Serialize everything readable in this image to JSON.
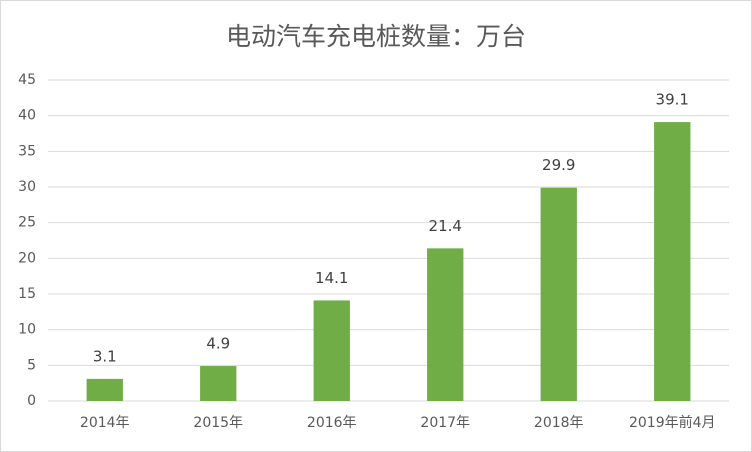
{
  "chart_data": {
    "type": "bar",
    "title": "电动汽车充电桩数量：万台",
    "categories": [
      "2014年",
      "2015年",
      "2016年",
      "2017年",
      "2018年",
      "2019年前4月"
    ],
    "values": [
      3.1,
      4.9,
      14.1,
      21.4,
      29.9,
      39.1
    ],
    "color": "#70ad47",
    "ylim": [
      0,
      45
    ],
    "yticks": [
      0,
      5,
      10,
      15,
      20,
      25,
      30,
      35,
      40,
      45
    ],
    "grid": true
  }
}
